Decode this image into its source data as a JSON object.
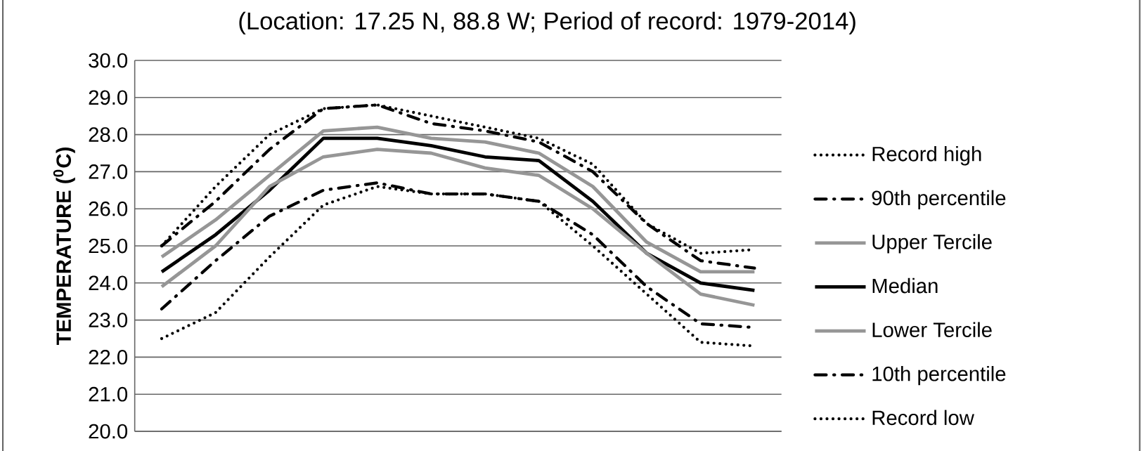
{
  "chart_data": {
    "type": "line",
    "title": "(Location: 17.25 N, 88.8 W; Period of record: 1979-2014)",
    "ylabel": "**TEMPERATURE ($^{0}$C)**",
    "categories": [
      null,
      null,
      null,
      null,
      null,
      null,
      null,
      null,
      null,
      null,
      null,
      null
    ],
    "series": [
      {
        "name": "Record high",
        "color": "#000000",
        "line_style": "dotted",
        "values": [
          25.0,
          26.6,
          28.0,
          28.7,
          28.8,
          28.5,
          28.2,
          27.9,
          27.2,
          25.6,
          24.8,
          24.9
        ]
      },
      {
        "name": "90th percentile",
        "color": "#000000",
        "line_style": "dashed",
        "values": [
          25.0,
          26.2,
          27.6,
          28.7,
          28.8,
          28.3,
          28.1,
          27.8,
          27.0,
          25.6,
          24.6,
          24.4
        ]
      },
      {
        "name": "Upper Tercile",
        "color": "#969696",
        "line_style": "solid",
        "values": [
          24.7,
          25.7,
          26.9,
          28.1,
          28.2,
          27.9,
          27.8,
          27.5,
          26.6,
          25.1,
          24.3,
          24.3
        ]
      },
      {
        "name": "Median",
        "color": "#000000",
        "line_style": "solid",
        "values": [
          24.3,
          25.3,
          26.5,
          27.9,
          27.9,
          27.7,
          27.4,
          27.3,
          26.2,
          24.8,
          24.0,
          23.8
        ]
      },
      {
        "name": "Lower Tercile",
        "color": "#969696",
        "line_style": "solid",
        "values": [
          23.9,
          25.0,
          26.6,
          27.4,
          27.6,
          27.5,
          27.1,
          26.9,
          26.0,
          24.8,
          23.7,
          23.4
        ]
      },
      {
        "name": "10th percentile",
        "color": "#000000",
        "line_style": "dashed",
        "values": [
          23.3,
          24.6,
          25.8,
          26.5,
          26.7,
          26.4,
          26.4,
          26.2,
          25.3,
          23.9,
          22.9,
          22.8
        ]
      },
      {
        "name": "Record low",
        "color": "#000000",
        "line_style": "dotted",
        "values": [
          22.5,
          23.2,
          24.7,
          26.1,
          26.6,
          26.4,
          26.4,
          26.2,
          25.0,
          23.7,
          22.4,
          22.3
        ]
      }
    ],
    "ylim": [
      20,
      30
    ],
    "yticks": [
      {
        "value": 20,
        "label": "20.0"
      },
      {
        "value": 21,
        "label": "21.0"
      },
      {
        "value": 22,
        "label": "22.0"
      },
      {
        "value": 23,
        "label": "23.0"
      },
      {
        "value": 24,
        "label": "24.0"
      },
      {
        "value": 25,
        "label": "25.0"
      },
      {
        "value": 26,
        "label": "26.0"
      },
      {
        "value": 27,
        "label": "27.0"
      },
      {
        "value": 28,
        "label": "28.0"
      },
      {
        "value": 29,
        "label": "29.0"
      },
      {
        "value": 30,
        "label": "30.0"
      }
    ],
    "grid": "y",
    "legend": "right",
    "tick_labels": "y"
  }
}
